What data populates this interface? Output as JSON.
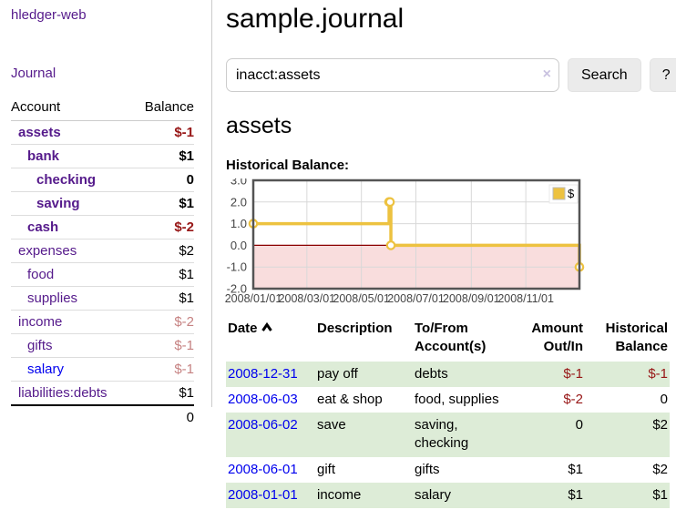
{
  "colors": {
    "link_purple": "#551a8b",
    "link_blue": "#0000ee",
    "negative_strong": "#971616",
    "negative_soft": "#c68282",
    "row_stripe_green": "#ddecd7",
    "chart_series_gold": "#edc240",
    "chart_negative_region": "#f9dddd",
    "chart_zero_line": "#8b0000",
    "chart_border": "#545454"
  },
  "sidebar": {
    "brand": "hledger-web",
    "nav_journal": "Journal",
    "accounts_header": {
      "account": "Account",
      "balance": "Balance"
    },
    "accounts": [
      {
        "name": "assets",
        "depth": 0,
        "bold": true,
        "balance": "$-1",
        "balance_style": "neg-strong",
        "link_style": "purple"
      },
      {
        "name": "bank",
        "depth": 1,
        "bold": true,
        "balance": "$1",
        "balance_style": "plain",
        "link_style": "purple"
      },
      {
        "name": "checking",
        "depth": 2,
        "bold": true,
        "balance": "0",
        "balance_style": "plain",
        "link_style": "purple"
      },
      {
        "name": "saving",
        "depth": 2,
        "bold": true,
        "balance": "$1",
        "balance_style": "plain",
        "link_style": "purple"
      },
      {
        "name": "cash",
        "depth": 1,
        "bold": true,
        "balance": "$-2",
        "balance_style": "neg-strong",
        "link_style": "purple"
      },
      {
        "name": "expenses",
        "depth": 0,
        "bold": false,
        "balance": "$2",
        "balance_style": "plain",
        "link_style": "purple"
      },
      {
        "name": "food",
        "depth": 1,
        "bold": false,
        "balance": "$1",
        "balance_style": "plain",
        "link_style": "purple"
      },
      {
        "name": "supplies",
        "depth": 1,
        "bold": false,
        "balance": "$1",
        "balance_style": "plain",
        "link_style": "purple"
      },
      {
        "name": "income",
        "depth": 0,
        "bold": false,
        "balance": "$-2",
        "balance_style": "neg-soft",
        "link_style": "purple"
      },
      {
        "name": "gifts",
        "depth": 1,
        "bold": false,
        "balance": "$-1",
        "balance_style": "neg-soft",
        "link_style": "purple"
      },
      {
        "name": "salary",
        "depth": 1,
        "bold": false,
        "balance": "$-1",
        "balance_style": "neg-soft",
        "link_style": "blue"
      },
      {
        "name": "liabilities:debts",
        "depth": 0,
        "bold": false,
        "balance": "$1",
        "balance_style": "plain",
        "link_style": "purple"
      }
    ],
    "total": "0"
  },
  "header": {
    "title": "sample.journal"
  },
  "search": {
    "value": "inacct:assets",
    "clear_icon": "×",
    "button": "Search",
    "help_button": "?"
  },
  "account_page": {
    "heading": "assets",
    "chart_label": "Historical Balance:"
  },
  "chart_data": {
    "type": "line",
    "step": true,
    "title": "Historical Balance",
    "series": [
      {
        "name": "$",
        "color": "#edc240",
        "points": [
          {
            "date": "2008-01-01",
            "value": 1
          },
          {
            "date": "2008-06-01",
            "value": 2
          },
          {
            "date": "2008-06-02",
            "value": 2
          },
          {
            "date": "2008-06-03",
            "value": 0
          },
          {
            "date": "2008-12-31",
            "value": -1
          }
        ]
      }
    ],
    "xlim": [
      "2008-01-01",
      "2008-12-31"
    ],
    "ylim": [
      -2,
      3
    ],
    "x_ticks": [
      {
        "label": "2008/01/01",
        "date": "2008-01-01"
      },
      {
        "label": "2008/03/01",
        "date": "2008-03-01"
      },
      {
        "label": "2008/05/01",
        "date": "2008-05-01"
      },
      {
        "label": "2008/07/01",
        "date": "2008-07-01"
      },
      {
        "label": "2008/09/01",
        "date": "2008-09-01"
      },
      {
        "label": "2008/11/01",
        "date": "2008-11-01"
      }
    ],
    "y_ticks": [
      3,
      2,
      1,
      0,
      -1,
      -2
    ],
    "legend": {
      "label": "$",
      "position": "top-right"
    },
    "grid": true,
    "negative_region_fill": "#f9dddd",
    "zero_line_color": "#8b0000"
  },
  "register": {
    "columns": [
      "Date",
      "Description",
      "To/From Account(s)",
      "Amount Out/In",
      "Historical Balance"
    ],
    "sort": {
      "column": "Date",
      "direction": "ascending"
    },
    "rows": [
      {
        "date": "2008-12-31",
        "description": "pay off",
        "accounts": "debts",
        "amount": "$-1",
        "amount_negative": true,
        "balance": "$-1",
        "balance_negative": true,
        "shaded": true
      },
      {
        "date": "2008-06-03",
        "description": "eat & shop",
        "accounts": "food, supplies",
        "amount": "$-2",
        "amount_negative": true,
        "balance": "0",
        "balance_negative": false,
        "shaded": false
      },
      {
        "date": "2008-06-02",
        "description": "save",
        "accounts": "saving, checking",
        "amount": "0",
        "amount_negative": false,
        "balance": "$2",
        "balance_negative": false,
        "shaded": true
      },
      {
        "date": "2008-06-01",
        "description": "gift",
        "accounts": "gifts",
        "amount": "$1",
        "amount_negative": false,
        "balance": "$2",
        "balance_negative": false,
        "shaded": false
      },
      {
        "date": "2008-01-01",
        "description": "income",
        "accounts": "salary",
        "amount": "$1",
        "amount_negative": false,
        "balance": "$1",
        "balance_negative": false,
        "shaded": true
      }
    ]
  }
}
